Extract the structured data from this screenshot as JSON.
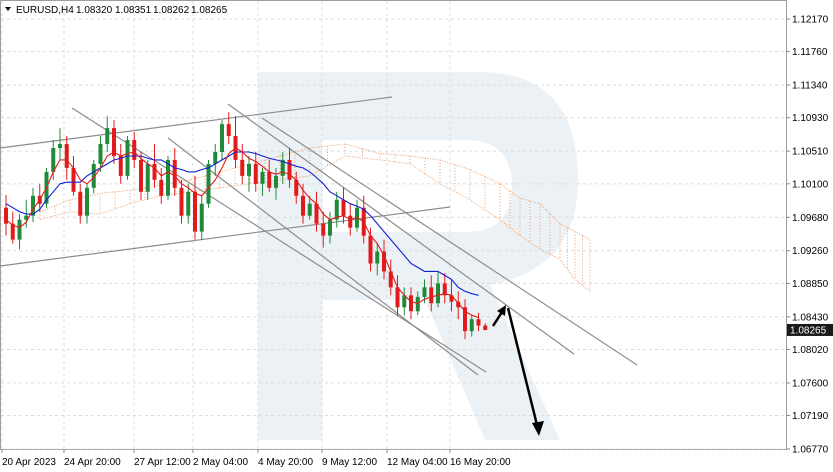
{
  "header": {
    "symbol": "EURUSD,H4",
    "open": "1.08320",
    "high": "1.08351",
    "low": "1.08262",
    "close": "1.08265"
  },
  "chart_data": {
    "type": "candlestick",
    "price_axis": {
      "ticks": [
        "1.12170",
        "1.11760",
        "1.11340",
        "1.10930",
        "1.10510",
        "1.10100",
        "1.09680",
        "1.09260",
        "1.08850",
        "1.08430",
        "1.08020",
        "1.07600",
        "1.07190",
        "1.06770"
      ],
      "current_price_label": "1.08265",
      "range": [
        1.0665,
        1.1225
      ]
    },
    "time_axis": {
      "ticks": [
        "20 Apr 2023",
        "24 Apr 20:00",
        "27 Apr 12:00",
        "2 May 04:00",
        "4 May 20:00",
        "9 May 12:00",
        "12 May 04:00",
        "16 May 20:00"
      ]
    },
    "candles": [
      [
        1.098,
        1.0996,
        1.0945,
        1.096
      ],
      [
        1.096,
        1.0975,
        1.0935,
        1.094
      ],
      [
        1.094,
        1.0972,
        1.0928,
        1.0965
      ],
      [
        1.0965,
        1.099,
        1.0955,
        1.097
      ],
      [
        1.097,
        1.1005,
        1.0962,
        1.0995
      ],
      [
        1.0995,
        1.101,
        1.0975,
        1.0985
      ],
      [
        1.0985,
        1.103,
        1.098,
        1.1025
      ],
      [
        1.1025,
        1.1065,
        1.1015,
        1.1055
      ],
      [
        1.1055,
        1.108,
        1.104,
        1.106
      ],
      [
        1.106,
        1.107,
        1.1015,
        1.103
      ],
      [
        1.103,
        1.1045,
        1.0995,
        1.1
      ],
      [
        1.1,
        1.101,
        1.096,
        1.097
      ],
      [
        1.097,
        1.101,
        1.096,
        1.1005
      ],
      [
        1.1005,
        1.104,
        1.0998,
        1.1035
      ],
      [
        1.1035,
        1.107,
        1.1025,
        1.106
      ],
      [
        1.106,
        1.1095,
        1.105,
        1.108
      ],
      [
        1.108,
        1.109,
        1.1035,
        1.1045
      ],
      [
        1.1045,
        1.106,
        1.101,
        1.102
      ],
      [
        1.102,
        1.107,
        1.1015,
        1.1065
      ],
      [
        1.1065,
        1.1075,
        1.103,
        1.104
      ],
      [
        1.104,
        1.105,
        1.099,
        1.1
      ],
      [
        1.1,
        1.104,
        1.099,
        1.1035
      ],
      [
        1.1035,
        1.106,
        1.1005,
        1.1015
      ],
      [
        1.1015,
        1.103,
        1.0985,
        1.0995
      ],
      [
        1.0995,
        1.1045,
        1.099,
        1.104
      ],
      [
        1.104,
        1.1055,
        1.0995,
        1.1005
      ],
      [
        1.1005,
        1.1015,
        1.096,
        1.097
      ],
      [
        1.097,
        1.101,
        1.096,
        1.1
      ],
      [
        1.1,
        1.102,
        1.094,
        1.095
      ],
      [
        1.095,
        1.0995,
        1.094,
        1.0985
      ],
      [
        1.0985,
        1.104,
        1.098,
        1.1035
      ],
      [
        1.1035,
        1.106,
        1.102,
        1.105
      ],
      [
        1.105,
        1.109,
        1.104,
        1.1085
      ],
      [
        1.1085,
        1.11,
        1.106,
        1.107
      ],
      [
        1.107,
        1.1095,
        1.103,
        1.104
      ],
      [
        1.104,
        1.106,
        1.101,
        1.102
      ],
      [
        1.102,
        1.1045,
        1.1,
        1.1035
      ],
      [
        1.1035,
        1.105,
        1.1,
        1.101
      ],
      [
        1.101,
        1.103,
        1.0995,
        1.1025
      ],
      [
        1.1025,
        1.104,
        1.1,
        1.1005
      ],
      [
        1.1005,
        1.103,
        1.099,
        1.102
      ],
      [
        1.102,
        1.105,
        1.101,
        1.104
      ],
      [
        1.104,
        1.1055,
        1.1005,
        1.1015
      ],
      [
        1.1015,
        1.1025,
        1.0985,
        1.0995
      ],
      [
        1.0995,
        1.101,
        1.096,
        1.097
      ],
      [
        1.097,
        1.0995,
        1.0965,
        1.0985
      ],
      [
        1.0985,
        1.1,
        1.095,
        1.096
      ],
      [
        1.096,
        1.0975,
        1.093,
        1.0945
      ],
      [
        1.0945,
        1.0975,
        1.0935,
        1.0965
      ],
      [
        1.0965,
        1.1,
        1.0955,
        1.099
      ],
      [
        1.099,
        1.1005,
        1.096,
        1.097
      ],
      [
        1.097,
        1.0985,
        1.0945,
        1.0955
      ],
      [
        1.0955,
        1.099,
        1.095,
        1.098
      ],
      [
        1.098,
        1.0995,
        1.0935,
        1.0945
      ],
      [
        1.0945,
        1.0955,
        1.09,
        1.091
      ],
      [
        1.091,
        1.0935,
        1.0895,
        1.0925
      ],
      [
        1.0925,
        1.094,
        1.089,
        1.09
      ],
      [
        1.09,
        1.0915,
        1.087,
        1.088
      ],
      [
        1.088,
        1.0895,
        1.0845,
        1.0855
      ],
      [
        1.0855,
        1.088,
        1.0845,
        1.087
      ],
      [
        1.087,
        1.088,
        1.084,
        1.085
      ],
      [
        1.085,
        1.0875,
        1.0845,
        1.0868
      ],
      [
        1.0868,
        1.089,
        1.086,
        1.088
      ],
      [
        1.088,
        1.0895,
        1.085,
        1.086
      ],
      [
        1.086,
        1.09,
        1.0855,
        1.0885
      ],
      [
        1.0885,
        1.0898,
        1.086,
        1.087
      ],
      [
        1.087,
        1.089,
        1.085,
        1.0862
      ],
      [
        1.0862,
        1.0875,
        1.084,
        1.0855
      ],
      [
        1.0855,
        1.0865,
        1.0815,
        1.0825
      ],
      [
        1.0825,
        1.0845,
        1.0818,
        1.084
      ],
      [
        1.084,
        1.0848,
        1.0825,
        1.0832
      ],
      [
        1.0832,
        1.0835,
        1.0826,
        1.08265
      ]
    ],
    "tenkan": [
      1.0965,
      1.0958,
      1.0955,
      1.0962,
      1.0978,
      1.099,
      1.1005,
      1.1025,
      1.104,
      1.104,
      1.103,
      1.1015,
      1.101,
      1.1018,
      1.103,
      1.1045,
      1.105,
      1.1045,
      1.1048,
      1.105,
      1.1042,
      1.1035,
      1.103,
      1.102,
      1.1025,
      1.102,
      1.101,
      1.1005,
      1.0998,
      1.0995,
      1.1005,
      1.1015,
      1.103,
      1.1048,
      1.1055,
      1.105,
      1.1042,
      1.1038,
      1.1032,
      1.1025,
      1.1022,
      1.1025,
      1.1022,
      1.1015,
      1.1002,
      1.0992,
      1.0985,
      1.0972,
      1.0965,
      1.0968,
      1.097,
      1.0965,
      1.0968,
      1.0962,
      1.0945,
      1.0935,
      1.092,
      1.09,
      1.088,
      1.087,
      1.0862,
      1.086,
      1.0865,
      1.0868,
      1.087,
      1.0872,
      1.087,
      1.086,
      1.085,
      1.0845,
      1.0842
    ],
    "kijun": [
      1.0985,
      1.098,
      1.0975,
      1.0972,
      1.0972,
      1.0978,
      1.099,
      1.1,
      1.101,
      1.1012,
      1.1012,
      1.1012,
      1.102,
      1.1025,
      1.103,
      1.1035,
      1.104,
      1.1042,
      1.1045,
      1.1045,
      1.1045,
      1.1042,
      1.104,
      1.104,
      1.1035,
      1.103,
      1.1028,
      1.1025,
      1.1025,
      1.1028,
      1.103,
      1.1035,
      1.104,
      1.1045,
      1.105,
      1.105,
      1.105,
      1.1048,
      1.1045,
      1.1042,
      1.104,
      1.1038,
      1.1035,
      1.1032,
      1.103,
      1.1025,
      1.1018,
      1.101,
      1.1,
      1.0995,
      1.099,
      1.0985,
      1.0982,
      1.0978,
      1.097,
      1.096,
      1.095,
      1.094,
      1.093,
      1.092,
      1.091,
      1.0905,
      1.09,
      1.09,
      1.09,
      1.0895,
      1.089,
      1.088,
      1.0875,
      1.0872,
      1.087
    ]
  }
}
